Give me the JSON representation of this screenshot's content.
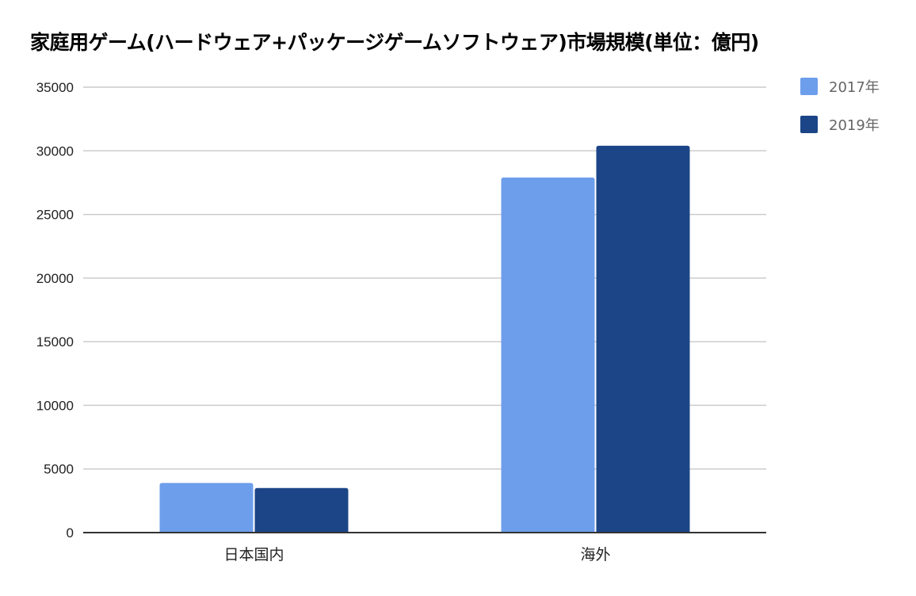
{
  "chart_data": {
    "type": "bar",
    "title": "家庭用ゲーム(ハードウェア+パッケージゲームソフトウェア)市場規模(単位：億円)",
    "categories": [
      "日本国内",
      "海外"
    ],
    "series": [
      {
        "name": "2017年",
        "color": "#6d9eeb",
        "values": [
          3900,
          27900
        ]
      },
      {
        "name": "2019年",
        "color": "#1c4587",
        "values": [
          3500,
          30400
        ]
      }
    ],
    "xlabel": "",
    "ylabel": "",
    "ylim": [
      0,
      35000
    ],
    "yticks": [
      0,
      5000,
      10000,
      15000,
      20000,
      25000,
      30000,
      35000
    ],
    "grid": true,
    "legend": "right"
  }
}
